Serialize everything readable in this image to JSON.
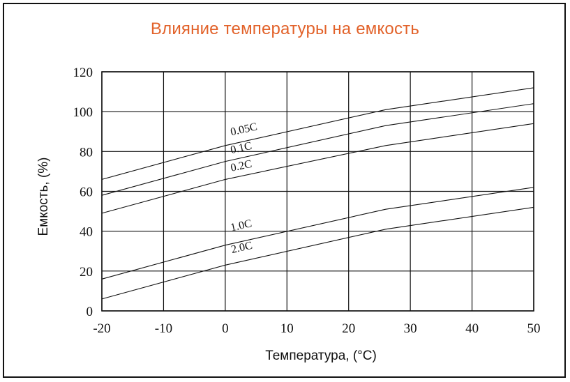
{
  "chart_data": {
    "type": "line",
    "title": "Влияние температуры на емкость",
    "xlabel": "Температура, (°C)",
    "ylabel": "Емкость, (%)",
    "xlim": [
      -20,
      50
    ],
    "ylim": [
      0,
      120
    ],
    "x_ticks": [
      "-20",
      "-10",
      "0",
      "10",
      "20",
      "30",
      "40",
      "50"
    ],
    "y_ticks": [
      "0",
      "20",
      "40",
      "60",
      "80",
      "100",
      "120"
    ],
    "grid": true,
    "colors": {
      "title": "#e2622a",
      "lines": "#111111"
    },
    "series": [
      {
        "name": "0.05C",
        "x": [
          -20,
          0,
          26,
          50
        ],
        "y": [
          66,
          83,
          101,
          112
        ]
      },
      {
        "name": "0.1C",
        "x": [
          -20,
          0,
          26,
          50
        ],
        "y": [
          58,
          75,
          93,
          104
        ]
      },
      {
        "name": "0.2C",
        "x": [
          -20,
          0,
          26,
          50
        ],
        "y": [
          49,
          66,
          83,
          94
        ]
      },
      {
        "name": "1.0C",
        "x": [
          -20,
          0,
          26,
          50
        ],
        "y": [
          16,
          33,
          51,
          62
        ]
      },
      {
        "name": "2.0C",
        "x": [
          -20,
          0,
          26,
          50
        ],
        "y": [
          6,
          23,
          41,
          52
        ]
      }
    ],
    "label_anchor_x": [
      1,
      1,
      1,
      1,
      1.1
    ],
    "label_anchor_y": [
      88,
      79,
      70,
      40,
      29
    ]
  }
}
